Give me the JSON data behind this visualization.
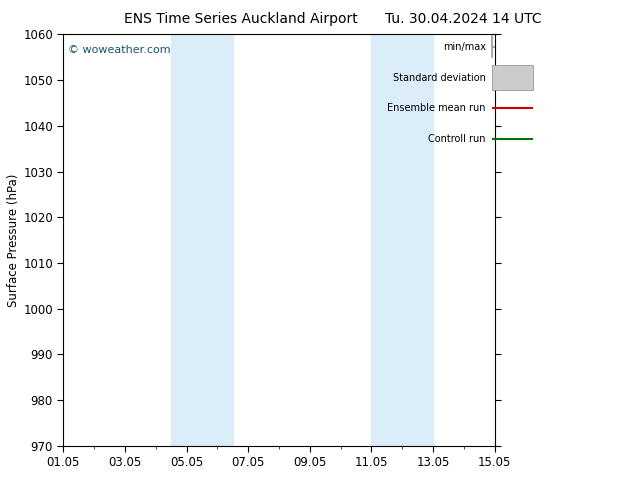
{
  "title_left": "ENS Time Series Auckland Airport",
  "title_right": "Tu. 30.04.2024 14 UTC",
  "ylabel": "Surface Pressure (hPa)",
  "ylim": [
    970,
    1060
  ],
  "yticks": [
    970,
    980,
    990,
    1000,
    1010,
    1020,
    1030,
    1040,
    1050,
    1060
  ],
  "xlim": [
    0,
    14
  ],
  "xtick_labels": [
    "01.05",
    "03.05",
    "05.05",
    "07.05",
    "09.05",
    "11.05",
    "13.05",
    "15.05"
  ],
  "xtick_positions": [
    0,
    2,
    4,
    6,
    8,
    10,
    12,
    14
  ],
  "shaded_bands": [
    {
      "x_start": 3.5,
      "x_end": 5.5,
      "color": "#daedf8"
    },
    {
      "x_start": 10,
      "x_end": 12,
      "color": "#daedf8"
    }
  ],
  "watermark": "© woweather.com",
  "watermark_color": "#1a5276",
  "legend_items": [
    {
      "label": "min/max",
      "color": "#999999",
      "style": "minmax"
    },
    {
      "label": "Standard deviation",
      "color": "#cccccc",
      "style": "band"
    },
    {
      "label": "Ensemble mean run",
      "color": "#cc0000",
      "style": "line"
    },
    {
      "label": "Controll run",
      "color": "#007700",
      "style": "line"
    }
  ],
  "background_color": "#ffffff",
  "plot_bg_color": "#ffffff",
  "title_fontsize": 10,
  "tick_fontsize": 8.5,
  "ylabel_fontsize": 8.5
}
